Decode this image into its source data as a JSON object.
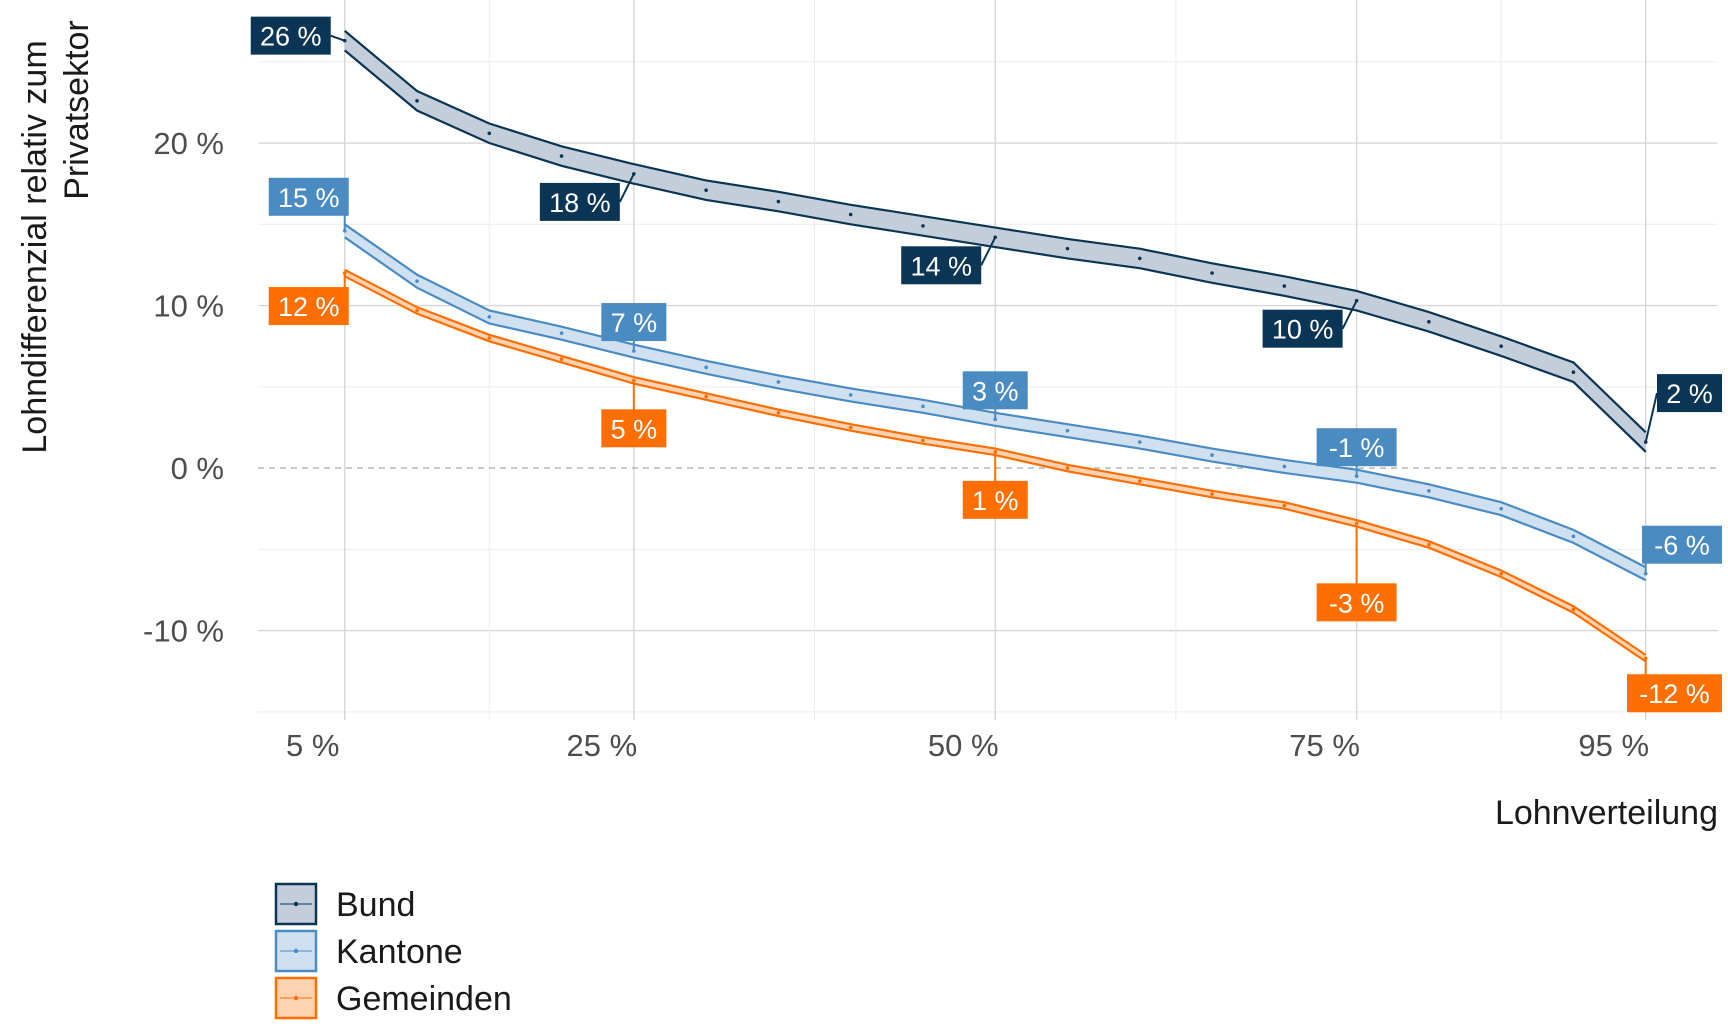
{
  "chart_data": {
    "type": "line",
    "xlabel": "Lohnverteilung",
    "ylabel_lines": [
      "Lohndifferenzial relativ zum",
      "Privatsektor"
    ],
    "x_ticks": [
      {
        "value": 5,
        "label": "5 %"
      },
      {
        "value": 25,
        "label": "25 %"
      },
      {
        "value": 50,
        "label": "50 %"
      },
      {
        "value": 75,
        "label": "75 %"
      },
      {
        "value": 95,
        "label": "95 %"
      }
    ],
    "y_ticks": [
      {
        "value": 20,
        "label": "20 %"
      },
      {
        "value": 10,
        "label": "10 %"
      },
      {
        "value": 0,
        "label": "0 %"
      },
      {
        "value": -10,
        "label": "-10 %"
      }
    ],
    "xlim": [
      -1,
      100
    ],
    "ylim": [
      -15.5,
      28.8
    ],
    "grid": true,
    "zero_line": "dashed",
    "legend_position": "bottom-left",
    "x": [
      5,
      10,
      15,
      20,
      25,
      30,
      35,
      40,
      45,
      50,
      55,
      60,
      65,
      70,
      75,
      80,
      85,
      90,
      95
    ],
    "series": [
      {
        "name": "Bund",
        "color": "#0b3554",
        "fill": "#c3ceda",
        "values": [
          26.3,
          22.6,
          20.6,
          19.2,
          18.1,
          17.1,
          16.4,
          15.6,
          14.9,
          14.2,
          13.5,
          12.9,
          12.0,
          11.2,
          10.3,
          9.0,
          7.5,
          5.9,
          1.6
        ],
        "band": 0.6,
        "labels": [
          {
            "x": 5,
            "y": 26.3,
            "text": "26 %"
          },
          {
            "x": 25,
            "y": 18.1,
            "text": "18 %"
          },
          {
            "x": 50,
            "y": 14.2,
            "text": "14 %"
          },
          {
            "x": 75,
            "y": 10.3,
            "text": "10 %"
          },
          {
            "x": 95,
            "y": 1.6,
            "text": "2 %"
          }
        ]
      },
      {
        "name": "Kantone",
        "color": "#4a8bc2",
        "fill": "#cfe1f1",
        "values": [
          14.6,
          11.5,
          9.3,
          8.3,
          7.2,
          6.2,
          5.3,
          4.5,
          3.8,
          3.0,
          2.3,
          1.6,
          0.8,
          0.1,
          -0.5,
          -1.4,
          -2.5,
          -4.2,
          -6.5
        ],
        "band": 0.4,
        "labels": [
          {
            "x": 5,
            "y": 14.6,
            "text": "15 %"
          },
          {
            "x": 25,
            "y": 7.2,
            "text": "7 %"
          },
          {
            "x": 50,
            "y": 3.0,
            "text": "3 %"
          },
          {
            "x": 75,
            "y": -0.5,
            "text": "-1 %"
          },
          {
            "x": 95,
            "y": -6.5,
            "text": "-6 %"
          }
        ]
      },
      {
        "name": "Gemeinden",
        "color": "#ff6e00",
        "fill": "#ffd2b2",
        "values": [
          12.0,
          9.7,
          8.0,
          6.7,
          5.4,
          4.4,
          3.4,
          2.5,
          1.7,
          1.0,
          0.0,
          -0.8,
          -1.6,
          -2.3,
          -3.4,
          -4.7,
          -6.5,
          -8.7,
          -11.7
        ],
        "band": 0.2,
        "labels": [
          {
            "x": 5,
            "y": 12.0,
            "text": "12 %"
          },
          {
            "x": 25,
            "y": 5.4,
            "text": "5 %"
          },
          {
            "x": 50,
            "y": 1.0,
            "text": "1 %"
          },
          {
            "x": 75,
            "y": -3.4,
            "text": "-3 %"
          },
          {
            "x": 95,
            "y": -11.7,
            "text": "-12 %"
          }
        ]
      }
    ]
  }
}
